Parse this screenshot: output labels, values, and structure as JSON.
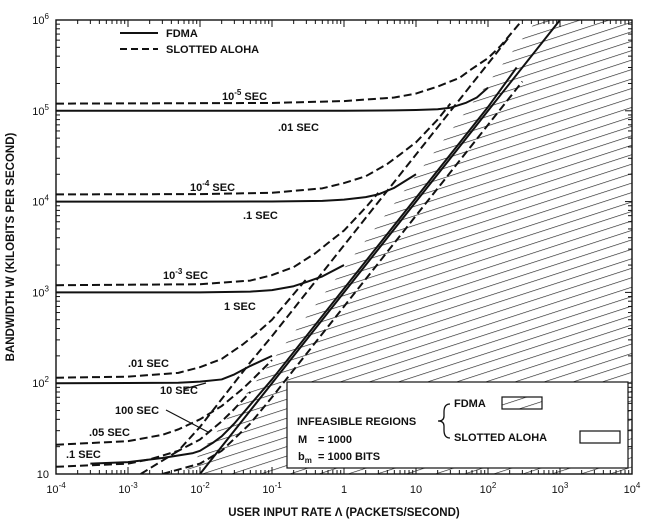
{
  "chart_data": {
    "type": "line",
    "xlabel": "USER INPUT RATE Λ (PACKETS/SECOND)",
    "ylabel": "BANDWIDTH W (KILOBITS PER SECOND)",
    "xscale": "log",
    "yscale": "log",
    "xlim": [
      0.0001,
      10000
    ],
    "ylim": [
      10,
      1000000
    ],
    "x_ticks": [
      {
        "value": 0.0001,
        "base": "10",
        "exp": "-4"
      },
      {
        "value": 0.001,
        "base": "10",
        "exp": "-3"
      },
      {
        "value": 0.01,
        "base": "10",
        "exp": "-2"
      },
      {
        "value": 0.1,
        "base": "10",
        "exp": "-1"
      },
      {
        "value": 1,
        "base": "1",
        "exp": ""
      },
      {
        "value": 10,
        "base": "10",
        "exp": ""
      },
      {
        "value": 100,
        "base": "10",
        "exp": "2"
      },
      {
        "value": 1000,
        "base": "10",
        "exp": "3"
      },
      {
        "value": 10000,
        "base": "10",
        "exp": "4"
      }
    ],
    "y_ticks": [
      {
        "value": 10,
        "base": "10",
        "exp": ""
      },
      {
        "value": 100,
        "base": "10",
        "exp": "2"
      },
      {
        "value": 1000,
        "base": "10",
        "exp": "3"
      },
      {
        "value": 10000,
        "base": "10",
        "exp": "4"
      },
      {
        "value": 100000,
        "base": "10",
        "exp": "5"
      },
      {
        "value": 1000000,
        "base": "10",
        "exp": "6"
      }
    ],
    "legend": {
      "position": "top-left",
      "entries": [
        {
          "label": "FDMA",
          "style": "solid"
        },
        {
          "label": "SLOTTED ALOHA",
          "style": "dashed"
        }
      ]
    },
    "series": [
      {
        "style": "solid",
        "x": [
          0.0001,
          0.01,
          0.1,
          1,
          5,
          10,
          20,
          30,
          50,
          70,
          100
        ],
        "y": [
          100000,
          100000,
          100000,
          100200,
          101000,
          102000,
          104000,
          108000,
          123000,
          140000,
          180000
        ]
      },
      {
        "style": "solid",
        "x": [
          0.0001,
          0.01,
          0.1,
          0.5,
          1,
          2,
          3,
          5,
          10
        ],
        "y": [
          10000,
          10000,
          10020,
          10200,
          10500,
          11200,
          12000,
          14200,
          20000
        ]
      },
      {
        "style": "solid",
        "x": [
          0.0001,
          0.01,
          0.05,
          0.1,
          0.2,
          0.3,
          0.5,
          1
        ],
        "y": [
          1000,
          1000,
          1020,
          1060,
          1170,
          1300,
          1500,
          2000
        ]
      },
      {
        "style": "solid",
        "x": [
          0.0001,
          0.005,
          0.01,
          0.02,
          0.03,
          0.05,
          0.1
        ],
        "y": [
          100,
          101,
          104,
          110,
          125,
          155,
          200
        ]
      },
      {
        "style": "solid",
        "x": [
          0.0003,
          0.001,
          0.003,
          0.008,
          0.01,
          0.015,
          0.02,
          0.03,
          0.05,
          0.1,
          1,
          10,
          100,
          250
        ],
        "y": [
          13,
          13.5,
          15,
          17,
          18,
          22,
          26,
          36,
          58,
          110,
          1100,
          11000,
          110000,
          300000
        ]
      },
      {
        "style": "solid",
        "x": [
          0.01,
          0.02,
          0.05,
          0.1,
          0.2,
          1,
          10,
          100,
          1000
        ],
        "y": [
          10,
          20,
          50,
          100,
          200,
          1000,
          10000,
          100000,
          1000000
        ]
      },
      {
        "style": "dashed",
        "x": [
          0.0001,
          0.1,
          1,
          5,
          10,
          20,
          40,
          60,
          100,
          150,
          200,
          300
        ],
        "y": [
          120000,
          122000,
          128000,
          140000,
          155000,
          185000,
          230000,
          290000,
          380000,
          520000,
          680000,
          1000000
        ]
      },
      {
        "style": "dashed",
        "x": [
          0.0001,
          0.01,
          0.1,
          0.5,
          1,
          2,
          4,
          6,
          10,
          20,
          30
        ],
        "y": [
          12000,
          12100,
          12500,
          14000,
          16000,
          19000,
          26000,
          33000,
          45000,
          80000,
          120000
        ]
      },
      {
        "style": "dashed",
        "x": [
          0.0001,
          0.01,
          0.05,
          0.1,
          0.2,
          0.4,
          0.6,
          1,
          2,
          3
        ],
        "y": [
          1200,
          1230,
          1350,
          1550,
          1900,
          2700,
          3500,
          4800,
          8600,
          12500
        ]
      },
      {
        "style": "dashed",
        "x": [
          0.0001,
          0.001,
          0.005,
          0.01,
          0.02,
          0.04,
          0.06,
          0.1,
          0.3
        ],
        "y": [
          115,
          118,
          130,
          150,
          185,
          270,
          350,
          500,
          1400
        ]
      },
      {
        "style": "dashed",
        "x": [
          0.0001,
          0.001,
          0.003,
          0.005,
          0.01,
          0.02,
          0.04,
          0.06,
          0.1
        ],
        "y": [
          21,
          23,
          27,
          31,
          40,
          56,
          88,
          120,
          180
        ]
      },
      {
        "style": "dashed",
        "x": [
          0.0001,
          0.001,
          0.002,
          0.005,
          0.01,
          0.02,
          0.03,
          0.05
        ],
        "y": [
          12,
          13,
          14.5,
          18,
          24,
          38,
          52,
          80
        ]
      },
      {
        "style": "dashed",
        "x": [
          0.003,
          0.01,
          0.02,
          0.05,
          0.1,
          0.2,
          1,
          10,
          100,
          300
        ],
        "y": [
          10,
          13,
          18,
          36,
          70,
          140,
          700,
          7000,
          70000,
          210000
        ]
      },
      {
        "style": "dashed",
        "x": [
          0.0015,
          0.005,
          0.01,
          0.05,
          0.1,
          1,
          10,
          100,
          200
        ],
        "y": [
          10,
          18,
          33,
          170,
          330,
          3300,
          33000,
          330000,
          660000
        ]
      }
    ],
    "annotations": {
      "a1": {
        "base": "10",
        "exp": "-5",
        "suffix": " SEC"
      },
      "a2": ".01 SEC",
      "a3": {
        "base": "10",
        "exp": "-4",
        "suffix": " SEC"
      },
      "a4": ".1 SEC",
      "a5": {
        "base": "10",
        "exp": "-3",
        "suffix": " SEC"
      },
      "a6": "1 SEC",
      "a7": ".01 SEC",
      "a8": "10 SEC",
      "a9": "100 SEC",
      "a10": ".05 SEC",
      "a11": ".1 SEC"
    },
    "infeasible_box": {
      "title": "INFEASIBLE REGIONS",
      "fdma": "FDMA",
      "aloha": "SLOTTED ALOHA",
      "m_label": "M",
      "m_value": "= 1000",
      "b_label": "b",
      "b_sub": "m",
      "b_value": "= 1000 BITS"
    }
  }
}
